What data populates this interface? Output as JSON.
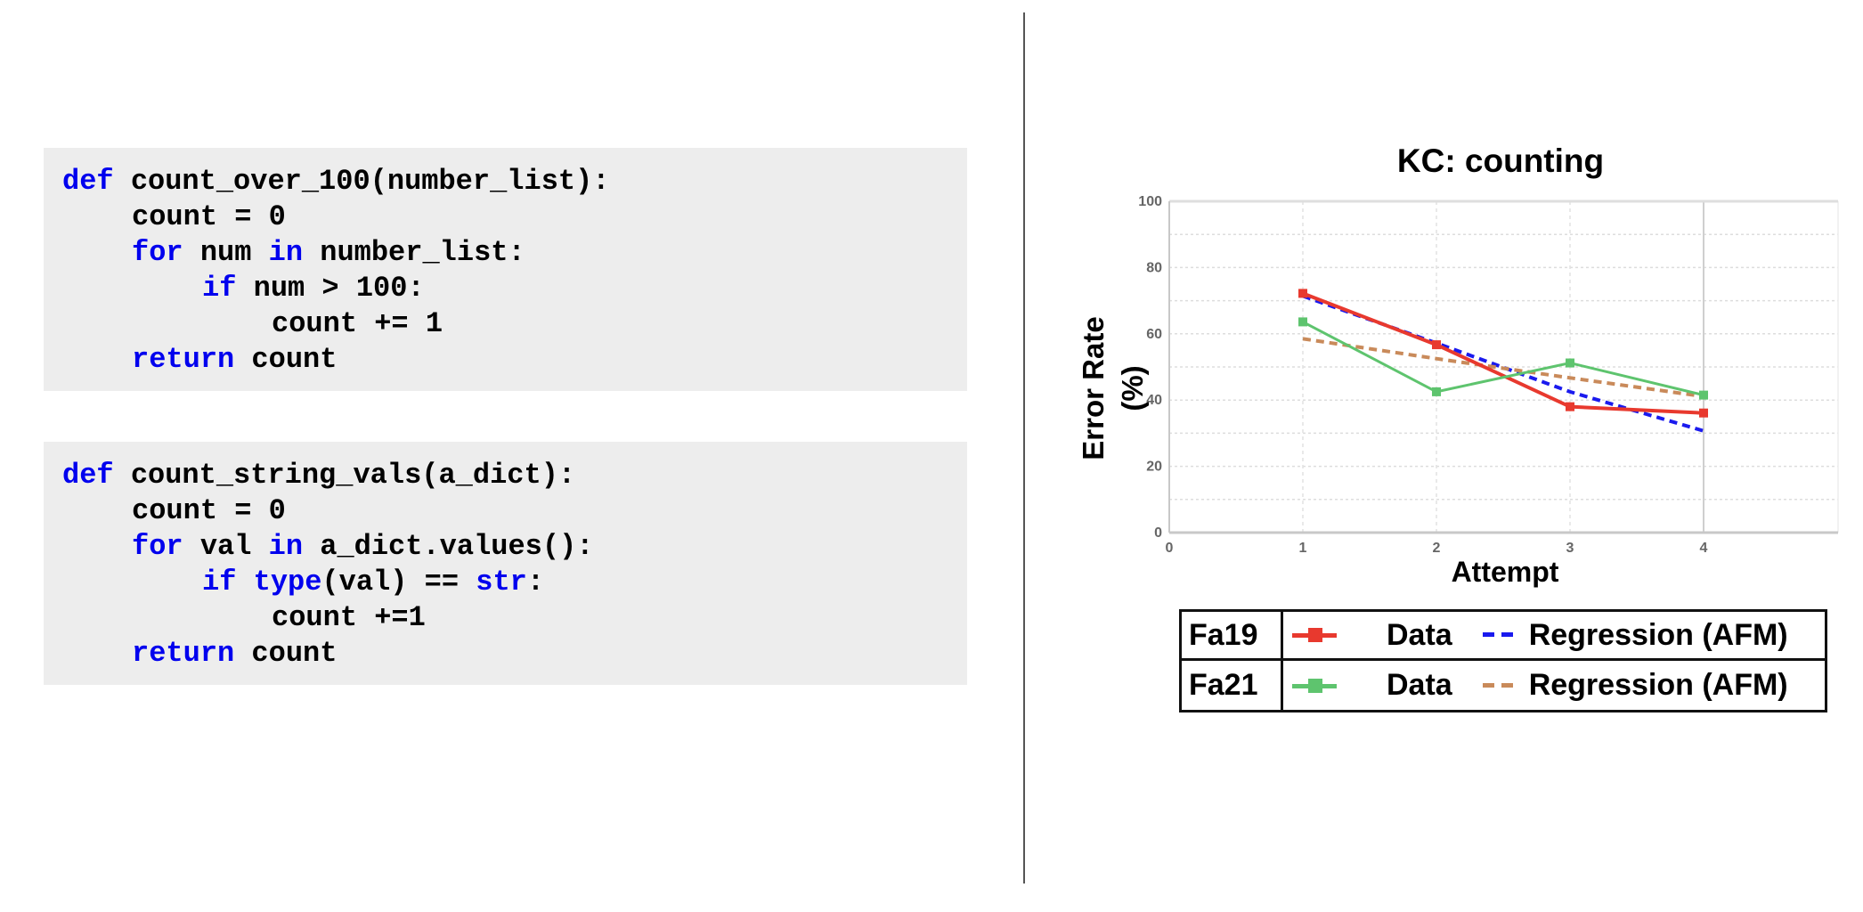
{
  "code_blocks": [
    {
      "lines": [
        {
          "kw": "def",
          "rest": " count_over_100(number_list):"
        },
        {
          "kw": "",
          "rest": "count = 0"
        },
        {
          "kw": "for",
          "rest": " num ",
          "kw2": "in",
          "rest2": " number_list:"
        },
        {
          "kw": "if",
          "rest": " num > 100:"
        },
        {
          "kw": "",
          "rest": "count += 1"
        },
        {
          "kw": "return",
          "rest": " count"
        }
      ]
    },
    {
      "lines": [
        {
          "kw": "def",
          "rest": " count_string_vals(a_dict):"
        },
        {
          "kw": "",
          "rest": "count = 0"
        },
        {
          "kw": "for",
          "rest": " val ",
          "kw2": "in",
          "rest2": " a_dict.values():"
        },
        {
          "kw": "if",
          "rest": " ",
          "kw2": "type",
          "rest2": "(val) == ",
          "kw3": "str",
          "rest3": ":"
        },
        {
          "kw": "",
          "rest": "count +=1"
        },
        {
          "kw": "return",
          "rest": " count"
        }
      ]
    }
  ],
  "colors": {
    "keyword": "#0000ee",
    "code_bg": "#ededed",
    "fa19_data": "#e8392e",
    "fa21_data": "#5ec46e",
    "fa19_regression": "#1a1aee",
    "fa21_regression": "#c98a5a"
  },
  "chart_data": {
    "type": "line",
    "title": "KC: counting",
    "xlabel": "Attempt",
    "ylabel": "Error Rate (%)",
    "ylabel_lines": [
      "Error Rate",
      "(%)"
    ],
    "x": [
      1,
      2,
      3,
      4
    ],
    "x_ticks": [
      "0",
      "1",
      "2",
      "3",
      "4"
    ],
    "y_ticks": [
      "0",
      "20",
      "40",
      "60",
      "80",
      "100"
    ],
    "xlim": [
      0,
      5
    ],
    "ylim": [
      0,
      100
    ],
    "grid": true,
    "series": [
      {
        "name": "Fa19 Data",
        "group": "Fa19",
        "style": "solid-square",
        "values": [
          72.2,
          56.7,
          38.0,
          36.1
        ]
      },
      {
        "name": "Fa19 Regression (AFM)",
        "group": "Fa19",
        "style": "dashed",
        "values": [
          71.4,
          57.2,
          42.5,
          30.7
        ]
      },
      {
        "name": "Fa21 Data",
        "group": "Fa21",
        "style": "solid-square",
        "values": [
          63.6,
          42.5,
          51.2,
          41.5
        ]
      },
      {
        "name": "Fa21 Regression (AFM)",
        "group": "Fa21",
        "style": "dashed",
        "values": [
          58.5,
          52.5,
          46.7,
          41.1
        ]
      }
    ],
    "legend": {
      "position": "below",
      "rows": [
        {
          "group": "Fa19",
          "data_label": "Data",
          "regression_label": "Regression (AFM)"
        },
        {
          "group": "Fa21",
          "data_label": "Data",
          "regression_label": "Regression (AFM)"
        }
      ]
    }
  }
}
